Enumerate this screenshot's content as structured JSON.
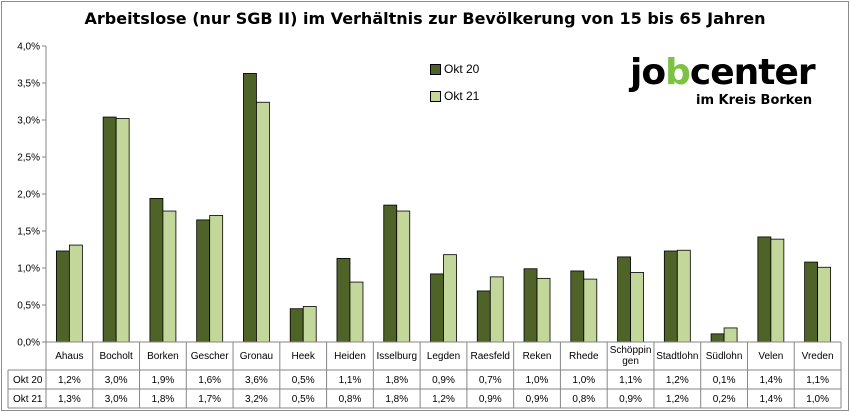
{
  "chart_data": {
    "type": "bar",
    "title": "Arbeitslose (nur SGB II) im Verhältnis zur Bevölkerung von 15 bis 65 Jahren",
    "categories": [
      "Ahaus",
      "Bocholt",
      "Borken",
      "Gescher",
      "Gronau",
      "Heek",
      "Heiden",
      "Isselburg",
      "Legden",
      "Raesfeld",
      "Reken",
      "Rhede",
      "Schöppingen",
      "Stadtlohn",
      "Südlohn",
      "Velen",
      "Vreden"
    ],
    "category_labels": [
      "Ahaus",
      "Bocholt",
      "Borken",
      "Gescher",
      "Gronau",
      "Heek",
      "Heiden",
      "Isselburg",
      "Legden",
      "Raesfeld",
      "Reken",
      "Rhede",
      "Schöppin\ngen",
      "Stadtlohn",
      "Südlohn",
      "Velen",
      "Vreden"
    ],
    "series": [
      {
        "name": "Okt 20",
        "color": "#4f6228",
        "values": [
          1.23,
          3.04,
          1.94,
          1.65,
          3.63,
          0.45,
          1.13,
          1.85,
          0.92,
          0.69,
          0.99,
          0.96,
          1.15,
          1.23,
          0.11,
          1.42,
          1.08
        ],
        "labels": [
          "1,2%",
          "3,0%",
          "1,9%",
          "1,6%",
          "3,6%",
          "0,5%",
          "1,1%",
          "1,8%",
          "0,9%",
          "0,7%",
          "1,0%",
          "1,0%",
          "1,1%",
          "1,2%",
          "0,1%",
          "1,4%",
          "1,1%"
        ]
      },
      {
        "name": "Okt 21",
        "color": "#c4d79b",
        "values": [
          1.31,
          3.02,
          1.77,
          1.71,
          3.24,
          0.48,
          0.81,
          1.77,
          1.18,
          0.88,
          0.86,
          0.85,
          0.94,
          1.24,
          0.19,
          1.39,
          1.01
        ],
        "labels": [
          "1,3%",
          "3,0%",
          "1,8%",
          "1,7%",
          "3,2%",
          "0,5%",
          "0,8%",
          "1,8%",
          "1,2%",
          "0,9%",
          "0,9%",
          "0,8%",
          "0,9%",
          "1,2%",
          "0,2%",
          "1,4%",
          "1,0%"
        ]
      }
    ],
    "yticks": [
      "0,0%",
      "0,5%",
      "1,0%",
      "1,5%",
      "2,0%",
      "2,5%",
      "3,0%",
      "3,5%",
      "4,0%"
    ],
    "ylim": [
      0,
      4
    ],
    "ylabel": "",
    "xlabel": "",
    "grid": false,
    "legend": "top-right",
    "data_table": true
  },
  "logo": {
    "text_main": "jobcenter",
    "text_sub": "im Kreis Borken",
    "accent_color": "#7dc242"
  }
}
